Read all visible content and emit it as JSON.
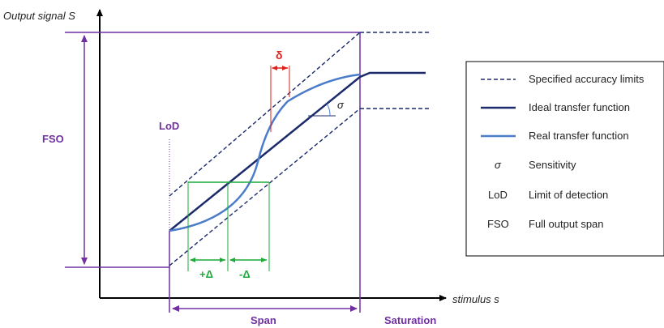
{
  "axes": {
    "y_label": "Output signal S",
    "x_label": "stimulus s"
  },
  "labels": {
    "fso": "FSO",
    "lod": "LoD",
    "span": "Span",
    "saturation": "Saturation",
    "delta_small": "δ",
    "plus_delta": "+Δ",
    "minus_delta": "-Δ",
    "sigma": "σ"
  },
  "legend": {
    "items": [
      {
        "symbol": "",
        "kind": "dashed",
        "label": "Specified accuracy limits"
      },
      {
        "symbol": "",
        "kind": "ideal",
        "label": "Ideal transfer function"
      },
      {
        "symbol": "",
        "kind": "real",
        "label": "Real transfer function"
      },
      {
        "symbol": "σ",
        "kind": "text-italic",
        "label": "Sensitivity"
      },
      {
        "symbol": "LoD",
        "kind": "text",
        "label": "Limit of detection"
      },
      {
        "symbol": "FSO",
        "kind": "text",
        "label": "Full output span"
      }
    ]
  },
  "colors": {
    "purple": "#7030a0",
    "green": "#1faa3a",
    "red": "#e0201b",
    "ideal": "#1b2a6b",
    "real": "#4a7cc9",
    "dashed": "#1b2a6b",
    "axis": "#000000"
  }
}
